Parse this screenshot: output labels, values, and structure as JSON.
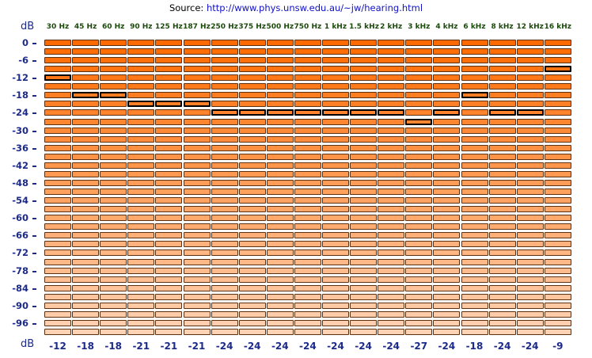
{
  "source": {
    "prefix": "Source:",
    "url": "http://www.phys.unsw.edu.au/~jw/hearing.html"
  },
  "axis": {
    "unit_top": "dB",
    "unit_bottom": "dB",
    "ticks": [
      "0",
      "-6",
      "-12",
      "-18",
      "-24",
      "-30",
      "-36",
      "-42",
      "-48",
      "-54",
      "-60",
      "-66",
      "-72",
      "-78",
      "-84",
      "-90",
      "-96"
    ],
    "min_db": 0,
    "step_db": 3,
    "rows": 34
  },
  "columns": [
    {
      "freq": "30 Hz",
      "selected_db": -12,
      "result": "-12"
    },
    {
      "freq": "45 Hz",
      "selected_db": -18,
      "result": "-18"
    },
    {
      "freq": "60 Hz",
      "selected_db": -18,
      "result": "-18"
    },
    {
      "freq": "90 Hz",
      "selected_db": -21,
      "result": "-21"
    },
    {
      "freq": "125 Hz",
      "selected_db": -21,
      "result": "-21"
    },
    {
      "freq": "187 Hz",
      "selected_db": -21,
      "result": "-21"
    },
    {
      "freq": "250 Hz",
      "selected_db": -24,
      "result": "-24"
    },
    {
      "freq": "375 Hz",
      "selected_db": -24,
      "result": "-24"
    },
    {
      "freq": "500 Hz",
      "selected_db": -24,
      "result": "-24"
    },
    {
      "freq": "750 Hz",
      "selected_db": -24,
      "result": "-24"
    },
    {
      "freq": "1 kHz",
      "selected_db": -24,
      "result": "-24"
    },
    {
      "freq": "1.5 kHz",
      "selected_db": -24,
      "result": "-24"
    },
    {
      "freq": "2 kHz",
      "selected_db": -24,
      "result": "-24"
    },
    {
      "freq": "3 kHz",
      "selected_db": -27,
      "result": "-27"
    },
    {
      "freq": "4 kHz",
      "selected_db": -24,
      "result": "-24"
    },
    {
      "freq": "6 kHz",
      "selected_db": -18,
      "result": "-18"
    },
    {
      "freq": "8 kHz",
      "selected_db": -24,
      "result": "-24"
    },
    {
      "freq": "12 kHz",
      "selected_db": -24,
      "result": "-24"
    },
    {
      "freq": "16 kHz",
      "selected_db": -9,
      "result": "-9"
    }
  ],
  "colors": {
    "top": "#ff6a00",
    "bottom": "#ffd2b4",
    "text": "#1c2a8a",
    "freq_text": "#1c4a0c"
  }
}
